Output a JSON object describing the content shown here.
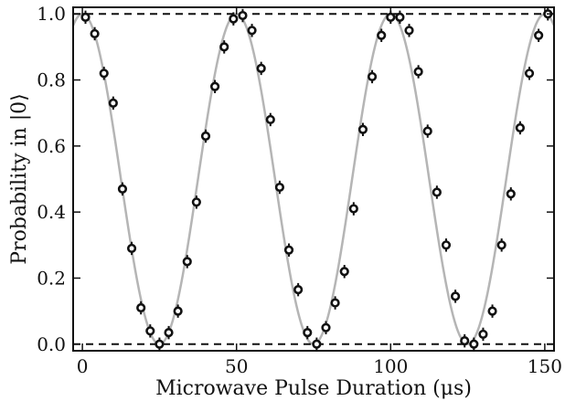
{
  "chart_data": {
    "type": "scatter",
    "xlabel": "Microwave Pulse Duration (μs)",
    "ylabel": "Probability in |0⟩",
    "xlim": [
      -3,
      153
    ],
    "ylim": [
      -0.02,
      1.02
    ],
    "x_ticks": [
      0,
      50,
      100,
      150
    ],
    "x_tick_labels": [
      "0",
      "50",
      "100",
      "150"
    ],
    "y_ticks": [
      0.0,
      0.2,
      0.4,
      0.6,
      0.8,
      1.0
    ],
    "y_tick_labels": [
      "0.0",
      "0.2",
      "0.4",
      "0.6",
      "0.8",
      "1.0"
    ],
    "grid": false,
    "legend": "none",
    "reference_lines_y": [
      0.0,
      1.0
    ],
    "fit_curve": {
      "model": "(1+cos(2*pi*x/T))/2",
      "period": 50,
      "color": "#b5b5b5"
    },
    "series": [
      {
        "marker": "open-circle",
        "color": "#111111",
        "points": [
          {
            "x": 1,
            "y": 0.99
          },
          {
            "x": 4,
            "y": 0.94
          },
          {
            "x": 7,
            "y": 0.82
          },
          {
            "x": 10,
            "y": 0.73
          },
          {
            "x": 13,
            "y": 0.47
          },
          {
            "x": 16,
            "y": 0.29
          },
          {
            "x": 19,
            "y": 0.11
          },
          {
            "x": 22,
            "y": 0.04
          },
          {
            "x": 25,
            "y": 0.0
          },
          {
            "x": 28,
            "y": 0.035
          },
          {
            "x": 31,
            "y": 0.1
          },
          {
            "x": 34,
            "y": 0.25
          },
          {
            "x": 37,
            "y": 0.43
          },
          {
            "x": 40,
            "y": 0.63
          },
          {
            "x": 43,
            "y": 0.78
          },
          {
            "x": 46,
            "y": 0.9
          },
          {
            "x": 49,
            "y": 0.985
          },
          {
            "x": 52,
            "y": 0.995
          },
          {
            "x": 55,
            "y": 0.95
          },
          {
            "x": 58,
            "y": 0.835
          },
          {
            "x": 61,
            "y": 0.68
          },
          {
            "x": 64,
            "y": 0.475
          },
          {
            "x": 67,
            "y": 0.285
          },
          {
            "x": 70,
            "y": 0.165
          },
          {
            "x": 73,
            "y": 0.035
          },
          {
            "x": 76,
            "y": 0.0
          },
          {
            "x": 79,
            "y": 0.05
          },
          {
            "x": 82,
            "y": 0.125
          },
          {
            "x": 85,
            "y": 0.22
          },
          {
            "x": 88,
            "y": 0.41
          },
          {
            "x": 91,
            "y": 0.65
          },
          {
            "x": 94,
            "y": 0.81
          },
          {
            "x": 97,
            "y": 0.935
          },
          {
            "x": 100,
            "y": 0.99
          },
          {
            "x": 103,
            "y": 0.99
          },
          {
            "x": 106,
            "y": 0.95
          },
          {
            "x": 109,
            "y": 0.825
          },
          {
            "x": 112,
            "y": 0.645
          },
          {
            "x": 115,
            "y": 0.46
          },
          {
            "x": 118,
            "y": 0.3
          },
          {
            "x": 121,
            "y": 0.145
          },
          {
            "x": 124,
            "y": 0.01
          },
          {
            "x": 127,
            "y": 0.0
          },
          {
            "x": 130,
            "y": 0.03
          },
          {
            "x": 133,
            "y": 0.1
          },
          {
            "x": 136,
            "y": 0.3
          },
          {
            "x": 139,
            "y": 0.455
          },
          {
            "x": 142,
            "y": 0.655
          },
          {
            "x": 145,
            "y": 0.82
          },
          {
            "x": 148,
            "y": 0.935
          },
          {
            "x": 151,
            "y": 1.0
          }
        ],
        "error_bar_halfwidth": 0.02
      }
    ]
  }
}
